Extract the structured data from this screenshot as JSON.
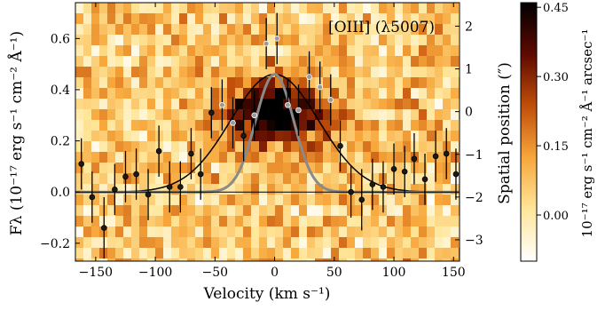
{
  "chart_data": {
    "type": "scatter",
    "title": "",
    "annotation": "[OIII] (λ5007)",
    "xlabel": "Velocity (km s⁻¹)",
    "ylabel": "Fλ (10⁻¹⁷ erg s⁻¹ cm⁻² Å⁻¹)",
    "y2label": "Spatial position (″)",
    "colorbar_label": "10⁻¹⁷ erg s⁻¹ cm⁻² Å⁻¹ arcsec⁻¹",
    "xlim": [
      -167,
      155
    ],
    "ylim": [
      -0.27,
      0.74
    ],
    "y2lim": [
      -3.5,
      2.55
    ],
    "x_ticks": [
      -150,
      -100,
      -50,
      0,
      50,
      100,
      150
    ],
    "x_tick_labels": [
      "−150",
      "−100",
      "−50",
      "0",
      "50",
      "100",
      "150"
    ],
    "y_ticks": [
      -0.2,
      0.0,
      0.2,
      0.4,
      0.6
    ],
    "y_tick_labels": [
      "−0.2",
      "0.0",
      "0.2",
      "0.4",
      "0.6"
    ],
    "y2_ticks": [
      -3,
      -2,
      -1,
      0,
      1,
      2
    ],
    "y2_tick_labels": [
      "−3",
      "−2",
      "−1",
      "0",
      "1",
      "2"
    ],
    "colorbar": {
      "range": [
        -0.1,
        0.46
      ],
      "ticks": [
        0.0,
        0.15,
        0.3,
        0.45
      ],
      "tick_labels": [
        "0.00",
        "0.15",
        "0.30",
        "0.45"
      ],
      "colormap": [
        "#ffffff",
        "#ffe69a",
        "#f7a73c",
        "#c14e0a",
        "#5e0a00",
        "#000000"
      ]
    },
    "series": [
      {
        "style": "errorbar-points",
        "color": "#000000",
        "x": [
          -162,
          -153,
          -143,
          -134,
          -125,
          -116,
          -106,
          -97,
          -88,
          -79,
          -70,
          -62,
          -53,
          -44,
          -35,
          -26,
          -17,
          -7,
          2,
          11,
          20,
          29,
          38,
          47,
          55,
          64,
          73,
          82,
          91,
          100,
          109,
          117,
          126,
          135,
          144,
          152
        ],
        "y": [
          0.11,
          -0.02,
          -0.14,
          0.01,
          0.06,
          0.07,
          -0.01,
          0.16,
          0.02,
          0.02,
          0.15,
          0.07,
          0.31,
          0.34,
          0.27,
          0.22,
          0.3,
          0.58,
          0.6,
          0.34,
          0.32,
          0.45,
          0.41,
          0.36,
          0.18,
          0.0,
          -0.03,
          0.03,
          0.02,
          0.09,
          0.08,
          0.13,
          0.05,
          0.14,
          0.15,
          0.07
        ],
        "yerr": [
          0.1,
          0.1,
          0.12,
          0.1,
          0.1,
          0.1,
          0.1,
          0.1,
          0.1,
          0.1,
          0.1,
          0.1,
          0.1,
          0.1,
          0.1,
          0.1,
          0.1,
          0.1,
          0.1,
          0.1,
          0.1,
          0.1,
          0.1,
          0.1,
          0.1,
          0.1,
          0.12,
          0.1,
          0.1,
          0.1,
          0.1,
          0.1,
          0.1,
          0.1,
          0.1,
          0.1
        ]
      },
      {
        "style": "line",
        "color": "#000000",
        "model": "gaussian",
        "amplitude": 0.46,
        "center": 0,
        "sigma": 37
      },
      {
        "style": "line",
        "color": "#8a8a8a",
        "model": "gaussian",
        "amplitude": 0.46,
        "center": 0,
        "sigma": 16
      }
    ]
  }
}
